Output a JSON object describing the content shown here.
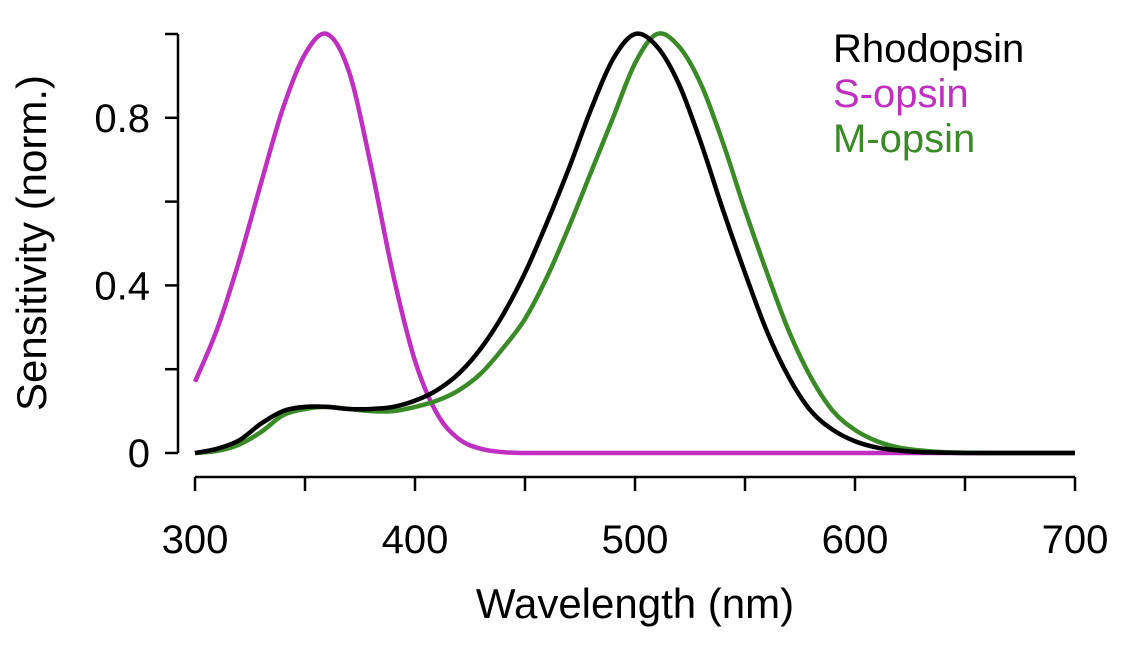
{
  "chart_data": {
    "type": "line",
    "title": "",
    "xlabel": "Wavelength (nm)",
    "ylabel": "Sensitivity (norm.)",
    "xlim": [
      300,
      700
    ],
    "ylim": [
      0,
      1
    ],
    "xticks": [
      300,
      400,
      500,
      600,
      700
    ],
    "xtick_labels": [
      "300",
      "400",
      "500",
      "600",
      "700"
    ],
    "yticks": [
      0,
      0.4,
      0.8
    ],
    "ytick_labels": [
      "0",
      "0.4",
      "0.8"
    ],
    "grid": false,
    "legend_position": "top-right",
    "x": [
      300,
      310,
      320,
      330,
      340,
      350,
      360,
      370,
      380,
      390,
      400,
      410,
      420,
      430,
      440,
      450,
      460,
      470,
      480,
      490,
      500,
      510,
      520,
      530,
      540,
      550,
      560,
      570,
      580,
      590,
      600,
      610,
      620,
      630,
      640,
      650,
      660,
      670,
      680,
      690,
      700
    ],
    "series": [
      {
        "name": "Rhodopsin",
        "color": "#000000",
        "values": [
          0.0,
          0.01,
          0.03,
          0.07,
          0.1,
          0.11,
          0.11,
          0.105,
          0.105,
          0.11,
          0.125,
          0.15,
          0.19,
          0.25,
          0.33,
          0.43,
          0.55,
          0.68,
          0.82,
          0.94,
          1.0,
          0.97,
          0.88,
          0.74,
          0.58,
          0.43,
          0.29,
          0.18,
          0.1,
          0.055,
          0.028,
          0.013,
          0.006,
          0.002,
          0.001,
          0,
          0,
          0,
          0,
          0,
          0
        ]
      },
      {
        "name": "S-opsin",
        "color": "#c030c0",
        "values": [
          0.17,
          0.295,
          0.458,
          0.644,
          0.823,
          0.952,
          1.0,
          0.91,
          0.685,
          0.427,
          0.22,
          0.094,
          0.033,
          0.01,
          0.002,
          0,
          0,
          0,
          0,
          0,
          0,
          0,
          0,
          0,
          0,
          0,
          0,
          0,
          0,
          0,
          0,
          0,
          0,
          0,
          0,
          0,
          0,
          0,
          0,
          0,
          0
        ]
      },
      {
        "name": "M-opsin",
        "color": "#3a8a28",
        "values": [
          0.0,
          0.005,
          0.02,
          0.05,
          0.09,
          0.105,
          0.11,
          0.105,
          0.1,
          0.1,
          0.11,
          0.125,
          0.15,
          0.19,
          0.25,
          0.32,
          0.42,
          0.54,
          0.67,
          0.8,
          0.93,
          1.0,
          0.97,
          0.88,
          0.74,
          0.58,
          0.43,
          0.29,
          0.18,
          0.1,
          0.055,
          0.028,
          0.013,
          0.006,
          0.002,
          0.001,
          0,
          0,
          0,
          0,
          0
        ]
      }
    ]
  }
}
